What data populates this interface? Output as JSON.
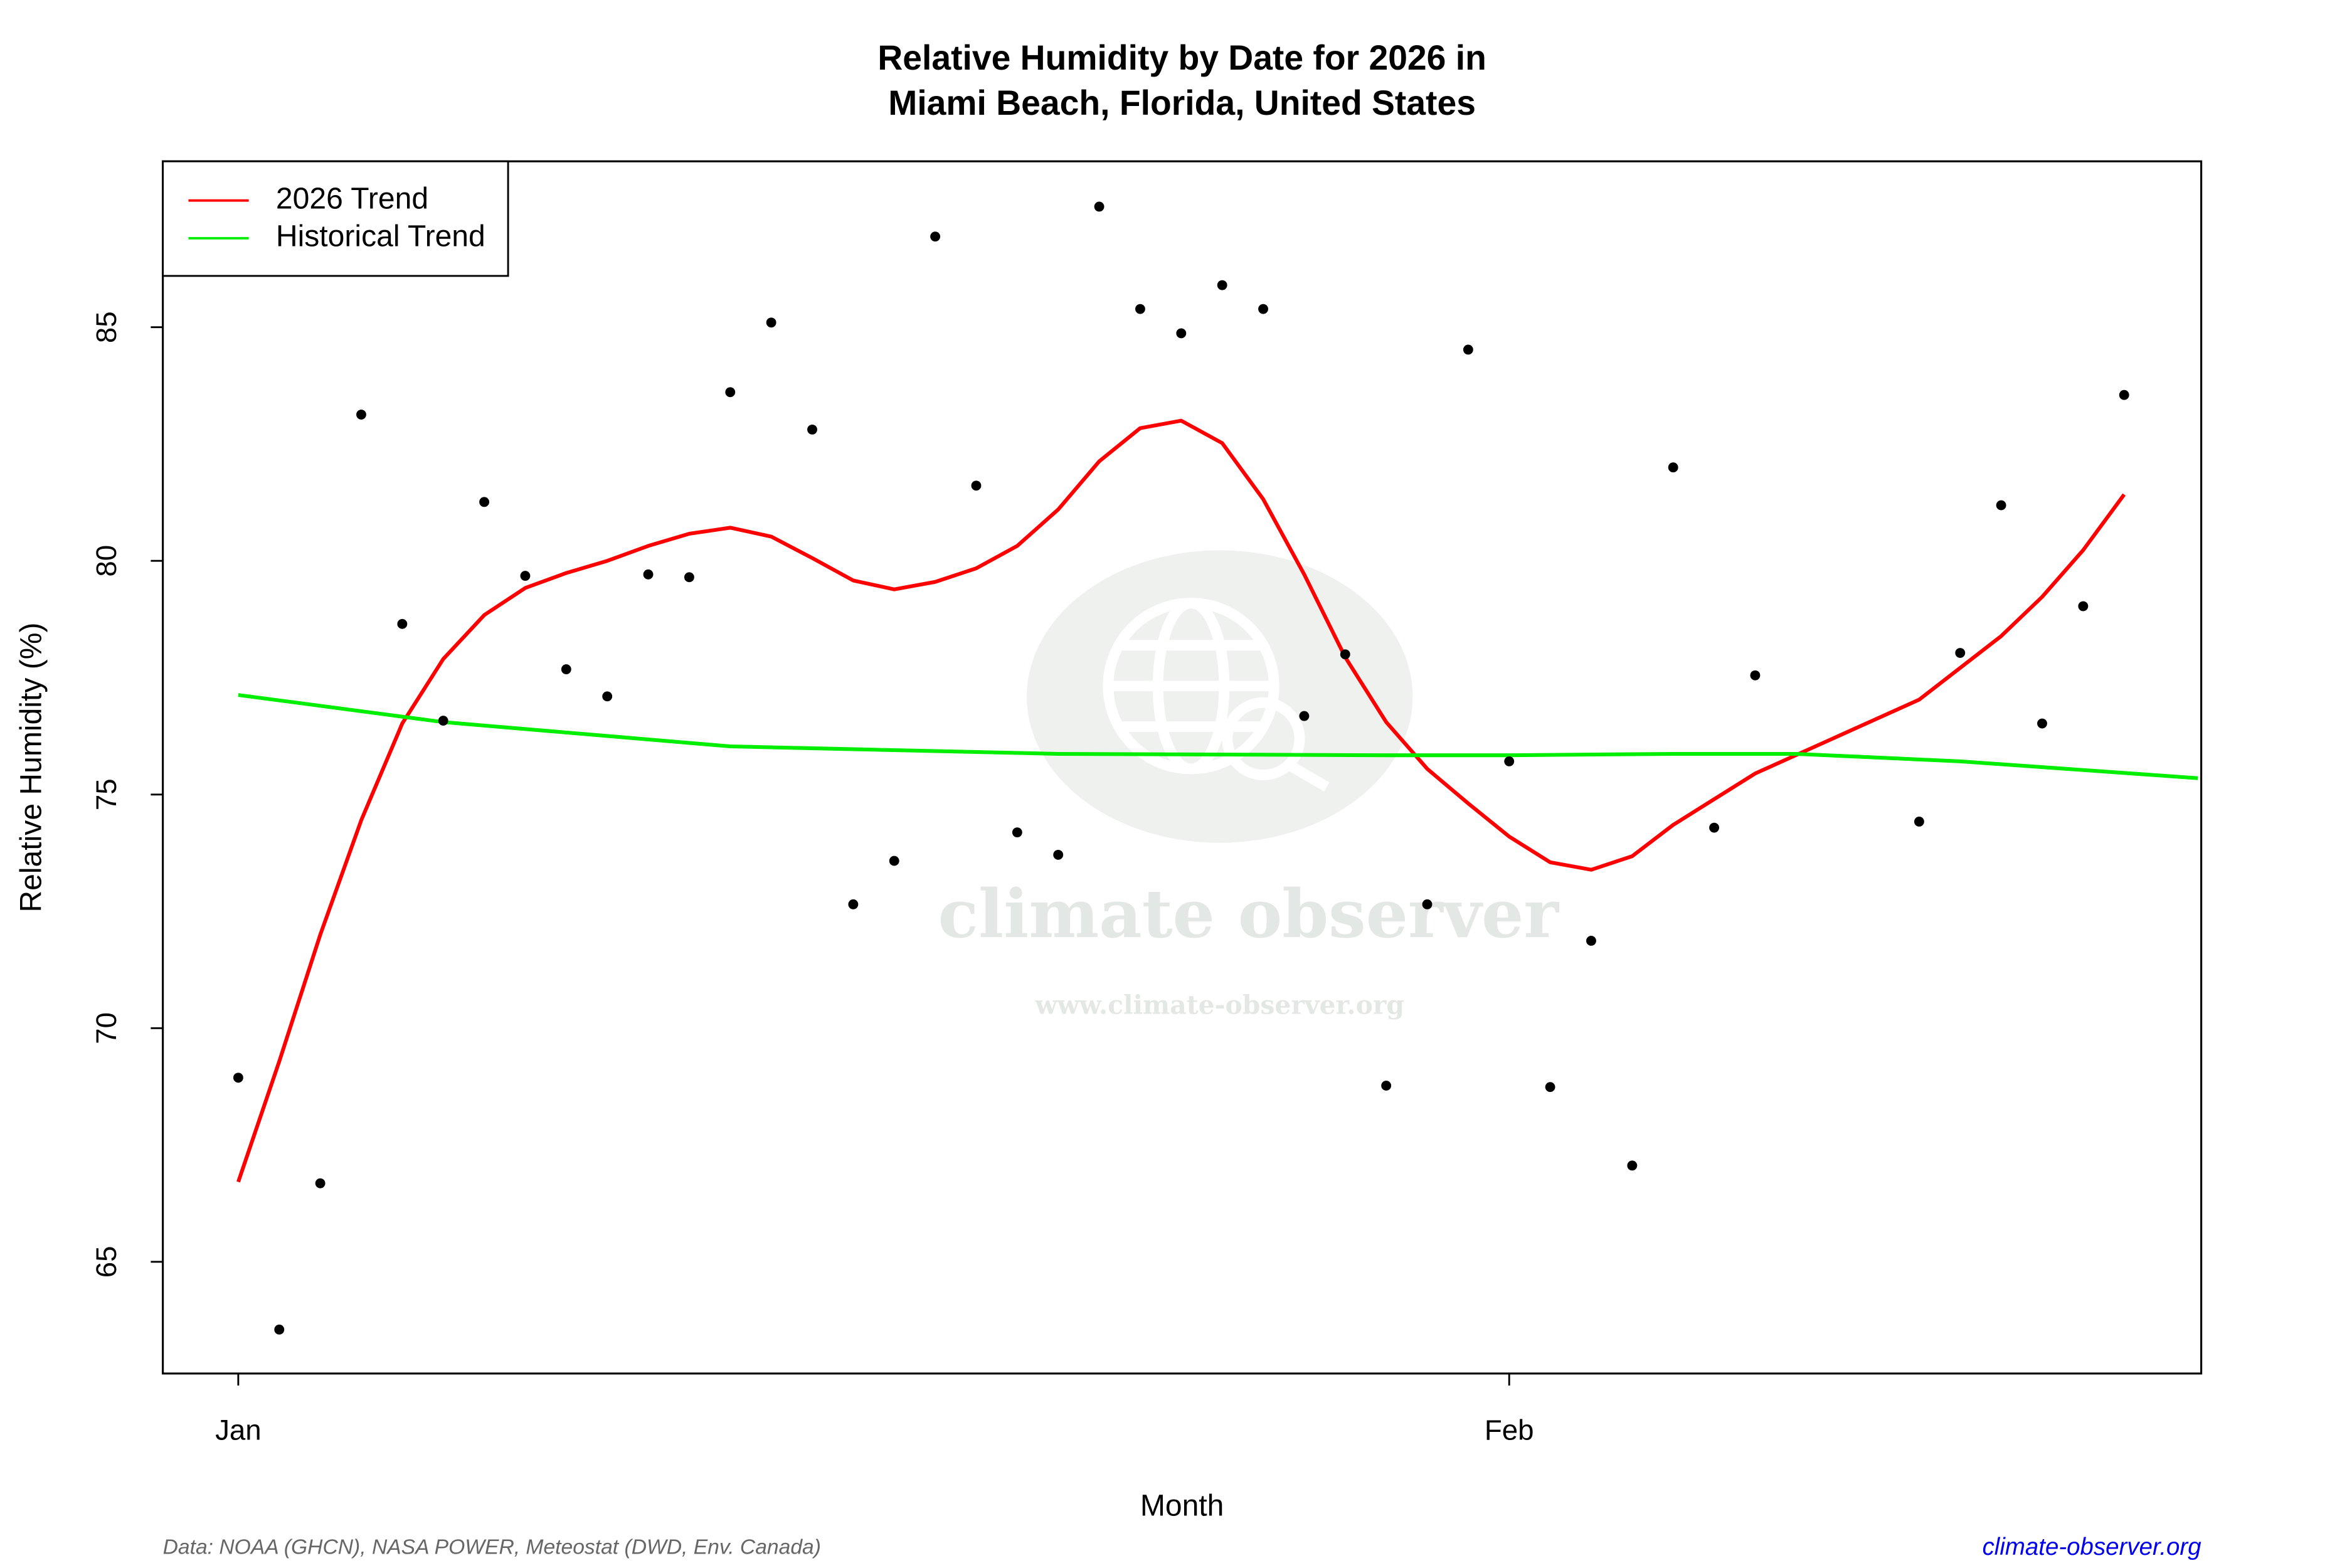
{
  "chart_data": {
    "type": "scatter",
    "title": [
      "Relative Humidity by Date for 2026 in",
      "Miami Beach, Florida, United States"
    ],
    "x_label": "Month",
    "y_label": "Relative Humidity (%)",
    "x": [
      0,
      1,
      2,
      3,
      4,
      5,
      6,
      7,
      8,
      9,
      10,
      11,
      12,
      13,
      14,
      15,
      16,
      17,
      18,
      19,
      20,
      21,
      22,
      23,
      24,
      25,
      26,
      27,
      28,
      29,
      30,
      31,
      32,
      33,
      34,
      35,
      36,
      37,
      41,
      42,
      43,
      44,
      45,
      46
    ],
    "values": [
      68.94,
      63.55,
      66.68,
      83.13,
      78.65,
      76.58,
      81.26,
      79.68,
      77.68,
      77.1,
      79.71,
      79.65,
      83.61,
      85.1,
      82.81,
      72.65,
      73.58,
      86.94,
      81.61,
      74.19,
      73.71,
      87.58,
      85.39,
      84.87,
      85.9,
      85.39,
      76.68,
      78.0,
      68.77,
      72.65,
      84.52,
      75.71,
      68.74,
      71.87,
      67.06,
      82.0,
      74.29,
      77.55,
      74.42,
      78.03,
      81.19,
      76.52,
      79.03,
      83.55
    ],
    "color": "#000000",
    "series": [
      {
        "name": "2026 Trend",
        "color": "#ff0000",
        "x": [
          0,
          1,
          2,
          3,
          4,
          5,
          6,
          7,
          8,
          9,
          10,
          11,
          12,
          13,
          14,
          15,
          16,
          17,
          18,
          19,
          20,
          21,
          22,
          23,
          24,
          25,
          26,
          27,
          28,
          29,
          30,
          31,
          32,
          33,
          34,
          35,
          36,
          37,
          41,
          42,
          43,
          44,
          45,
          46
        ],
        "values": [
          66.71,
          69.29,
          72.0,
          74.45,
          76.52,
          77.9,
          78.84,
          79.42,
          79.74,
          80.0,
          80.32,
          80.58,
          80.71,
          80.52,
          80.06,
          79.58,
          79.39,
          79.55,
          79.84,
          80.32,
          81.1,
          82.13,
          82.84,
          83.0,
          82.52,
          81.32,
          79.71,
          77.94,
          76.55,
          75.55,
          74.81,
          74.1,
          73.55,
          73.39,
          73.68,
          74.35,
          74.9,
          75.45,
          77.03,
          77.71,
          78.39,
          79.23,
          80.23,
          81.42
        ]
      },
      {
        "name": "Historical Trend",
        "color": "#00ee00",
        "x": [
          0,
          5,
          12,
          20,
          28,
          31,
          35,
          38,
          42,
          47.8
        ],
        "values": [
          77.13,
          76.55,
          76.03,
          75.87,
          75.84,
          75.84,
          75.87,
          75.87,
          75.71,
          75.35
        ]
      }
    ],
    "xlim": [
      -1.84,
      47.88
    ],
    "xticks": [
      {
        "value": 0,
        "label": "Jan"
      },
      {
        "value": 31,
        "label": "Feb"
      }
    ],
    "ylim": [
      62.61,
      88.55
    ],
    "yticks": [
      65,
      70,
      75,
      80,
      85
    ],
    "legend": "top-left"
  },
  "footer": {
    "source": "Data: NOAA (GHCN), NASA POWER, Meteostat (DWD, Env. Canada)",
    "link": "climate-observer.org"
  },
  "watermark": {
    "name": "climate observer",
    "url": "www.climate-observer.org"
  }
}
